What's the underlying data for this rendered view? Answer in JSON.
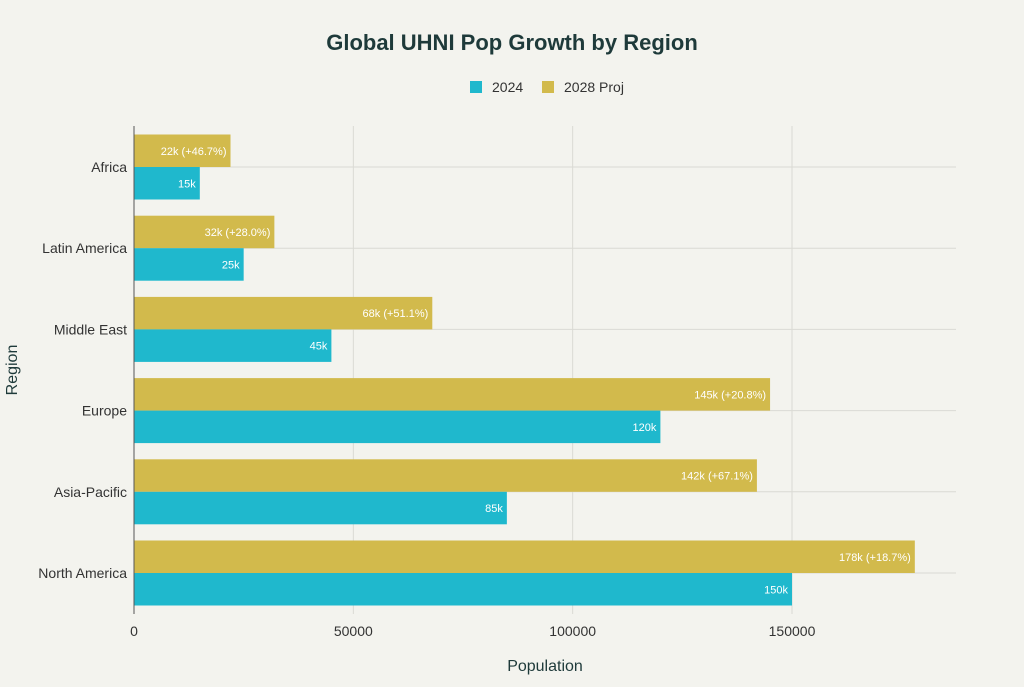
{
  "chart_data": {
    "type": "bar",
    "orientation": "horizontal",
    "title": "Global UHNI Pop Growth by Region",
    "xlabel": "Population",
    "ylabel": "Region",
    "xlim": [
      0,
      187500
    ],
    "xticks": [
      0,
      50000,
      100000,
      150000
    ],
    "xtick_labels": [
      "0",
      "50000",
      "100000",
      "150000"
    ],
    "grid": true,
    "legend_position": "top-center",
    "categories": [
      "Africa",
      "Latin America",
      "Middle East",
      "Europe",
      "Asia-Pacific",
      "North America"
    ],
    "series": [
      {
        "name": "2024",
        "color": "#1FB8CD",
        "values": [
          15000,
          25000,
          45000,
          120000,
          85000,
          150000
        ],
        "labels": [
          "15k",
          "25k",
          "45k",
          "120k",
          "85k",
          "150k"
        ]
      },
      {
        "name": "2028 Proj",
        "color": "#D2BA4C",
        "values": [
          22000,
          32000,
          68000,
          145000,
          142000,
          178000
        ],
        "labels": [
          "22k (+46.7%)",
          "32k (+28.0%)",
          "68k (+51.1%)",
          "145k (+20.8%)",
          "142k (+67.1%)",
          "178k (+18.7%)"
        ]
      }
    ]
  }
}
